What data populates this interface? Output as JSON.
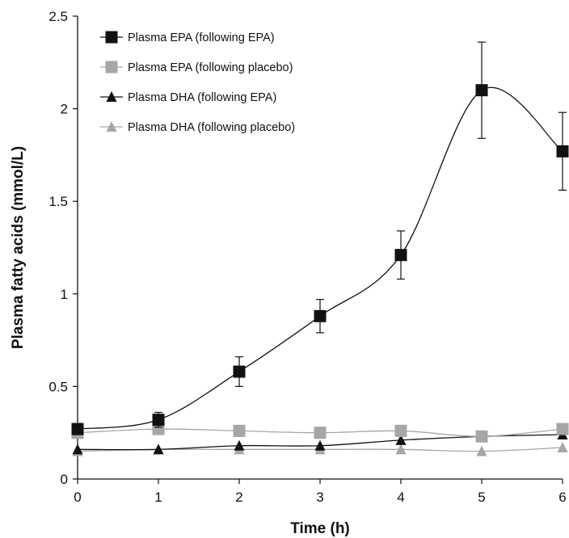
{
  "chart_data": {
    "type": "line",
    "title": "",
    "xlabel": "Time (h)",
    "ylabel": "Plasma fatty acids (mmol/L)",
    "x": [
      0,
      1,
      2,
      3,
      4,
      5,
      6
    ],
    "xlim": [
      0,
      6
    ],
    "ylim": [
      0,
      2.5
    ],
    "x_ticks": [
      "0",
      "1",
      "2",
      "3",
      "4",
      "5",
      "6"
    ],
    "y_ticks": [
      "0",
      "0.5",
      "1",
      "1.5",
      "2",
      "2.5"
    ],
    "grid": false,
    "legend_position": "top-left",
    "series": [
      {
        "name": "Plasma EPA (following EPA)",
        "marker": "square",
        "color": "#111111",
        "values": [
          0.27,
          0.32,
          0.58,
          0.88,
          1.21,
          2.1,
          1.77
        ],
        "error": [
          0.03,
          0.04,
          0.08,
          0.09,
          0.13,
          0.26,
          0.21
        ]
      },
      {
        "name": "Plasma EPA (following placebo)",
        "marker": "square",
        "color": "#a6a6a6",
        "values": [
          0.25,
          0.27,
          0.26,
          0.25,
          0.26,
          0.23,
          0.27
        ],
        "error": [
          0.03,
          0.03,
          0.03,
          0.03,
          0.03,
          0.02,
          0.02
        ]
      },
      {
        "name": "Plasma DHA (following EPA)",
        "marker": "triangle",
        "color": "#111111",
        "values": [
          0.16,
          0.16,
          0.18,
          0.18,
          0.21,
          0.23,
          0.24
        ],
        "error": [
          0,
          0,
          0,
          0,
          0,
          0,
          0
        ]
      },
      {
        "name": "Plasma DHA (following placebo)",
        "marker": "triangle",
        "color": "#a6a6a6",
        "values": [
          0.15,
          0.16,
          0.16,
          0.16,
          0.16,
          0.15,
          0.17
        ],
        "error": [
          0,
          0,
          0,
          0,
          0,
          0,
          0
        ]
      }
    ]
  }
}
